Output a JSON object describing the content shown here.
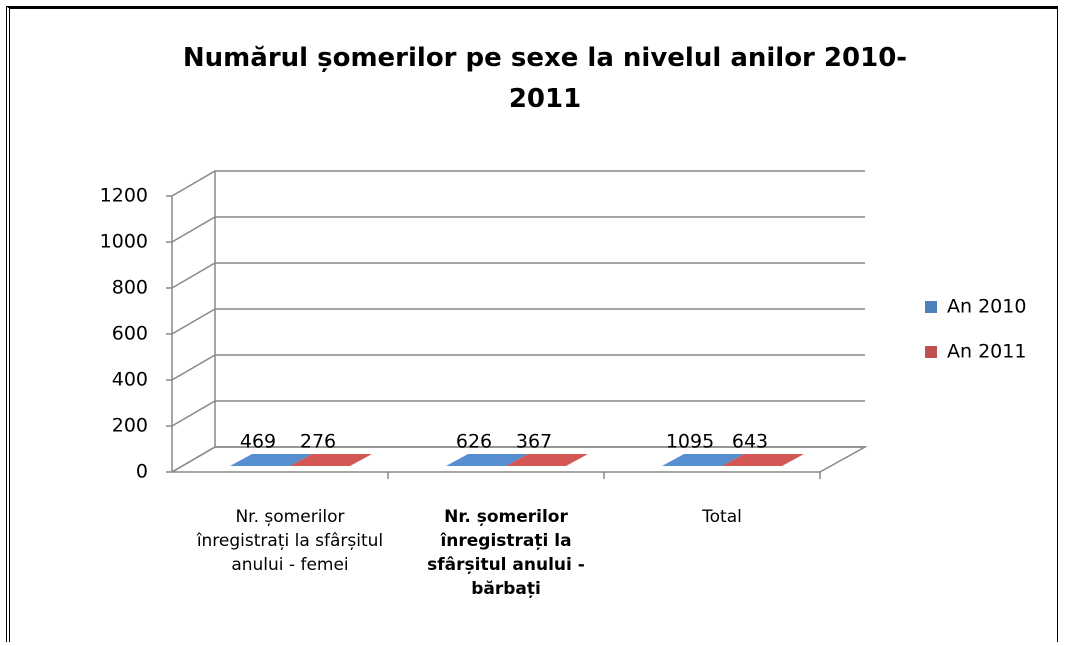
{
  "chart_data": {
    "type": "bar3d",
    "title": "Numărul șomerilor pe sexe la nivelul anilor 2010-2011",
    "categories": [
      "Nr. șomerilor înregistrați la sfârșitul anului - femei",
      "Nr. șomerilor înregistrați la sfârșitul anului - bărbați",
      "Total"
    ],
    "series": [
      {
        "name": "An 2010",
        "color": "#4F81BD",
        "values": [
          469,
          626,
          1095
        ]
      },
      {
        "name": "An 2011",
        "color": "#C0504D",
        "values": [
          276,
          367,
          643
        ]
      }
    ],
    "ylim": [
      0,
      1200
    ],
    "yticks": [
      0,
      200,
      400,
      600,
      800,
      1000,
      1200
    ],
    "grid": true,
    "legend": "right"
  }
}
